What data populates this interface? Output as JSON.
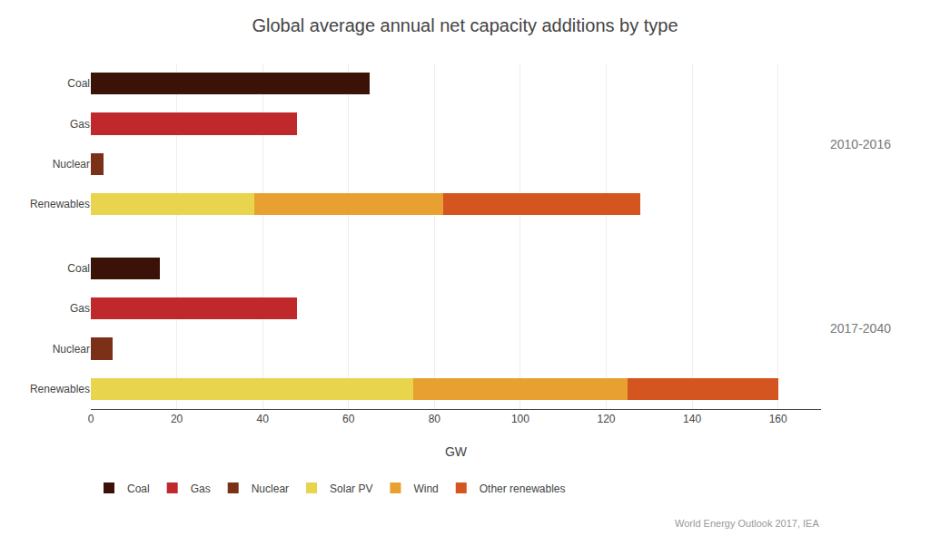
{
  "chart_data": {
    "type": "bar",
    "orientation": "horizontal",
    "stacked": true,
    "title": "Global average annual net capacity additions by type",
    "xlabel": "GW",
    "xlim": [
      0,
      170
    ],
    "xticks": [
      0,
      20,
      40,
      60,
      80,
      100,
      120,
      140,
      160
    ],
    "grid": true,
    "categories": [
      "Coal",
      "Gas",
      "Nuclear",
      "Renewables",
      "Coal",
      "Gas",
      "Nuclear",
      "Renewables"
    ],
    "series": [
      {
        "name": "Coal",
        "color": "#3b1208",
        "values": [
          65,
          null,
          null,
          null,
          16,
          null,
          null,
          null
        ]
      },
      {
        "name": "Gas",
        "color": "#c0292b",
        "values": [
          null,
          48,
          null,
          null,
          null,
          48,
          null,
          null
        ]
      },
      {
        "name": "Nuclear",
        "color": "#7b3018",
        "values": [
          null,
          null,
          3,
          null,
          null,
          null,
          5,
          null
        ]
      },
      {
        "name": "Solar PV",
        "color": "#e8d44d",
        "values": [
          null,
          null,
          null,
          38,
          null,
          null,
          null,
          75
        ]
      },
      {
        "name": "Wind",
        "color": "#e8a030",
        "values": [
          null,
          null,
          null,
          44,
          null,
          null,
          null,
          50
        ]
      },
      {
        "name": "Other renewables",
        "color": "#d45520",
        "values": [
          null,
          null,
          null,
          46,
          null,
          null,
          null,
          35
        ]
      }
    ],
    "annotations": [
      "2010-2016",
      "2017-2040",
      "World Energy Outlook 2017, IEA"
    ]
  }
}
